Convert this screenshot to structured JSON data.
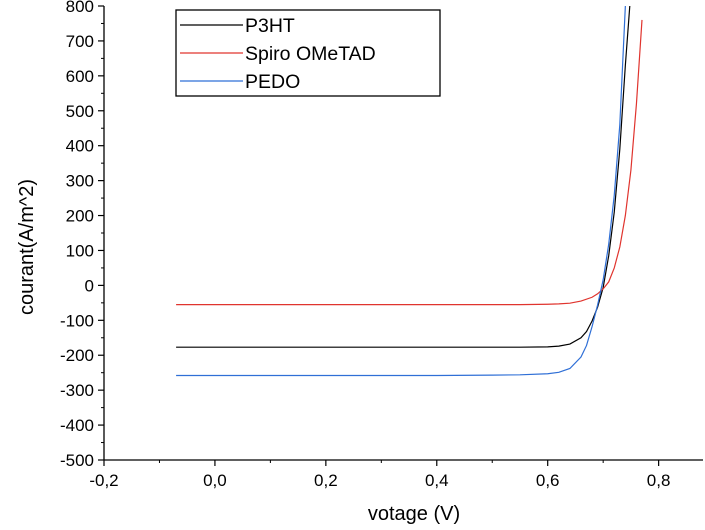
{
  "chart_data": {
    "type": "line",
    "title": "",
    "xlabel": "votage (V)",
    "ylabel": "courant(A/m^2)",
    "xlim": [
      -0.2,
      0.88
    ],
    "ylim": [
      -500,
      800
    ],
    "x_ticks": [
      -0.2,
      0.0,
      0.2,
      0.4,
      0.6,
      0.8
    ],
    "x_tick_labels": [
      "-0,2",
      "0,0",
      "0,2",
      "0,4",
      "0,6",
      "0,8"
    ],
    "y_ticks": [
      -500,
      -400,
      -300,
      -200,
      -100,
      0,
      100,
      200,
      300,
      400,
      500,
      600,
      700,
      800
    ],
    "y_tick_labels": [
      "-500",
      "-400",
      "-300",
      "-200",
      "-100",
      "0",
      "100",
      "200",
      "300",
      "400",
      "500",
      "600",
      "700",
      "800"
    ],
    "grid": false,
    "legend_position": "top-left",
    "series": [
      {
        "name": "P3HT",
        "color": "#000000",
        "x": [
          -0.07,
          0.0,
          0.1,
          0.2,
          0.3,
          0.4,
          0.5,
          0.55,
          0.6,
          0.62,
          0.64,
          0.66,
          0.67,
          0.68,
          0.69,
          0.7,
          0.71,
          0.72,
          0.73,
          0.74,
          0.748
        ],
        "y": [
          -177,
          -177,
          -177,
          -177,
          -177,
          -177,
          -177,
          -177,
          -176,
          -174,
          -168,
          -150,
          -132,
          -102,
          -62,
          -6,
          85,
          210,
          390,
          630,
          800
        ]
      },
      {
        "name": "Spiro OMeTAD",
        "color": "#e0342e",
        "x": [
          -0.07,
          0.0,
          0.1,
          0.2,
          0.3,
          0.4,
          0.5,
          0.55,
          0.6,
          0.62,
          0.64,
          0.66,
          0.68,
          0.69,
          0.7,
          0.71,
          0.72,
          0.73,
          0.74,
          0.75,
          0.76,
          0.77
        ],
        "y": [
          -55,
          -55,
          -55,
          -55,
          -55,
          -55,
          -55,
          -55,
          -54,
          -53,
          -51,
          -45,
          -34,
          -24,
          -10,
          10,
          50,
          110,
          200,
          330,
          520,
          760
        ]
      },
      {
        "name": "PEDO",
        "color": "#2f6fd6",
        "x": [
          -0.07,
          0.0,
          0.1,
          0.2,
          0.3,
          0.4,
          0.5,
          0.55,
          0.6,
          0.62,
          0.64,
          0.66,
          0.67,
          0.68,
          0.69,
          0.7,
          0.71,
          0.72,
          0.73,
          0.74
        ],
        "y": [
          -258,
          -258,
          -258,
          -258,
          -258,
          -258,
          -257,
          -256,
          -253,
          -249,
          -238,
          -205,
          -172,
          -118,
          -56,
          16,
          118,
          258,
          460,
          800
        ]
      }
    ]
  }
}
